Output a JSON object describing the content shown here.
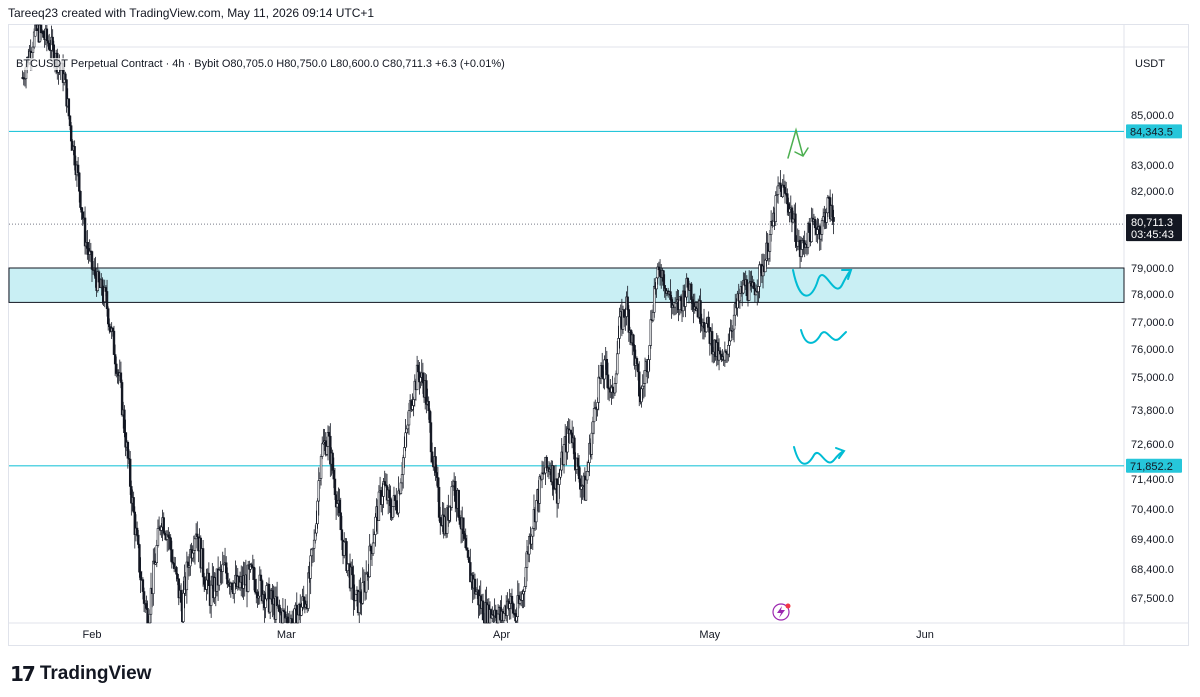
{
  "header": {
    "credit": "Tareeq23 created with TradingView.com, May 11, 2026 09:14 UTC+1"
  },
  "symbol": {
    "info": "BTCUSDT Perpetual Contract · 4h · Bybit  O80,705.0  H80,750.0  L80,600.0  C80,711.3  +6.3 (+0.01%)"
  },
  "currency": "USDT",
  "footer": {
    "brand": "TradingView",
    "mark": "17"
  },
  "colors": {
    "candle": "#131722",
    "level_line": "#26c6da",
    "zone_fill": "#c9eff4",
    "annotation_cyan": "#00bcd4",
    "annotation_green": "#4caf50",
    "badge_bg": "#26c6da",
    "price_badge_bg": "#131722"
  },
  "chart_data": {
    "type": "candlestick",
    "title": "",
    "y_axis": {
      "ticks": [
        {
          "value": 85000,
          "label": "85,000.0"
        },
        {
          "value": 83000,
          "label": "83,000.0"
        },
        {
          "value": 82000,
          "label": "82,000.0"
        },
        {
          "value": 79000,
          "label": "79,000.0"
        },
        {
          "value": 78000,
          "label": "78,000.0"
        },
        {
          "value": 77000,
          "label": "77,000.0"
        },
        {
          "value": 76000,
          "label": "76,000.0"
        },
        {
          "value": 75000,
          "label": "75,000.0"
        },
        {
          "value": 73800,
          "label": "73,800.0"
        },
        {
          "value": 72600,
          "label": "72,600.0"
        },
        {
          "value": 71400,
          "label": "71,400.0"
        },
        {
          "value": 70400,
          "label": "70,400.0"
        },
        {
          "value": 69400,
          "label": "69,400.0"
        },
        {
          "value": 68400,
          "label": "68,400.0"
        },
        {
          "value": 67500,
          "label": "67,500.0"
        }
      ]
    },
    "x_axis": {
      "ticks": [
        {
          "day": 31,
          "label": "Feb"
        },
        {
          "day": 59,
          "label": "Mar"
        },
        {
          "day": 90,
          "label": "Apr"
        },
        {
          "day": 120,
          "label": "May"
        },
        {
          "day": 151,
          "label": "Jun"
        }
      ]
    },
    "levels": [
      {
        "price": 84343.5,
        "label": "84,343.5"
      },
      {
        "price": 71852.2,
        "label": "71,852.2"
      }
    ],
    "zone": {
      "top": 79000,
      "bottom": 77700
    },
    "current_price": {
      "price": 80711.3,
      "label": "80,711.3",
      "countdown": "03:45:43"
    },
    "price_path": [
      {
        "day": 21,
        "price": 86500
      },
      {
        "day": 23,
        "price": 88500
      },
      {
        "day": 25,
        "price": 87800
      },
      {
        "day": 27,
        "price": 86500
      },
      {
        "day": 28,
        "price": 84200
      },
      {
        "day": 29,
        "price": 82500
      },
      {
        "day": 30,
        "price": 80200
      },
      {
        "day": 31,
        "price": 79000
      },
      {
        "day": 32,
        "price": 78300
      },
      {
        "day": 33,
        "price": 77800
      },
      {
        "day": 34,
        "price": 76300
      },
      {
        "day": 35,
        "price": 74800
      },
      {
        "day": 36,
        "price": 72400
      },
      {
        "day": 37,
        "price": 70200
      },
      {
        "day": 38,
        "price": 68200
      },
      {
        "day": 39,
        "price": 66800
      },
      {
        "day": 40,
        "price": 68500
      },
      {
        "day": 41,
        "price": 70200
      },
      {
        "day": 42,
        "price": 69500
      },
      {
        "day": 43,
        "price": 68200
      },
      {
        "day": 44,
        "price": 67200
      },
      {
        "day": 45,
        "price": 68800
      },
      {
        "day": 46,
        "price": 69800
      },
      {
        "day": 47,
        "price": 68400
      },
      {
        "day": 48,
        "price": 67600
      },
      {
        "day": 50,
        "price": 68400
      },
      {
        "day": 52,
        "price": 67800
      },
      {
        "day": 54,
        "price": 68200
      },
      {
        "day": 56,
        "price": 67600
      },
      {
        "day": 58,
        "price": 67000
      },
      {
        "day": 60,
        "price": 66700
      },
      {
        "day": 62,
        "price": 67600
      },
      {
        "day": 63,
        "price": 69200
      },
      {
        "day": 64,
        "price": 72400
      },
      {
        "day": 65,
        "price": 72800
      },
      {
        "day": 66,
        "price": 71200
      },
      {
        "day": 67,
        "price": 69400
      },
      {
        "day": 68,
        "price": 68400
      },
      {
        "day": 69,
        "price": 67300
      },
      {
        "day": 70,
        "price": 67600
      },
      {
        "day": 71,
        "price": 68800
      },
      {
        "day": 72,
        "price": 70200
      },
      {
        "day": 73,
        "price": 71200
      },
      {
        "day": 74,
        "price": 70400
      },
      {
        "day": 75,
        "price": 70700
      },
      {
        "day": 76,
        "price": 72400
      },
      {
        "day": 77,
        "price": 74200
      },
      {
        "day": 78,
        "price": 75200
      },
      {
        "day": 79,
        "price": 74600
      },
      {
        "day": 80,
        "price": 72400
      },
      {
        "day": 81,
        "price": 70400
      },
      {
        "day": 82,
        "price": 69800
      },
      {
        "day": 83,
        "price": 71400
      },
      {
        "day": 84,
        "price": 70200
      },
      {
        "day": 85,
        "price": 68600
      },
      {
        "day": 86,
        "price": 67900
      },
      {
        "day": 87,
        "price": 67300
      },
      {
        "day": 88,
        "price": 66900
      },
      {
        "day": 89,
        "price": 67200
      },
      {
        "day": 90,
        "price": 66800
      },
      {
        "day": 91,
        "price": 67500
      },
      {
        "day": 92,
        "price": 66900
      },
      {
        "day": 93,
        "price": 67600
      },
      {
        "day": 94,
        "price": 69400
      },
      {
        "day": 95,
        "price": 70600
      },
      {
        "day": 96,
        "price": 71600
      },
      {
        "day": 97,
        "price": 71900
      },
      {
        "day": 98,
        "price": 71000
      },
      {
        "day": 99,
        "price": 72400
      },
      {
        "day": 100,
        "price": 73200
      },
      {
        "day": 101,
        "price": 71600
      },
      {
        "day": 102,
        "price": 71000
      },
      {
        "day": 103,
        "price": 73000
      },
      {
        "day": 104,
        "price": 74800
      },
      {
        "day": 105,
        "price": 75300
      },
      {
        "day": 106,
        "price": 74200
      },
      {
        "day": 107,
        "price": 76800
      },
      {
        "day": 108,
        "price": 77600
      },
      {
        "day": 109,
        "price": 76000
      },
      {
        "day": 110,
        "price": 74200
      },
      {
        "day": 111,
        "price": 75600
      },
      {
        "day": 112,
        "price": 78200
      },
      {
        "day": 113,
        "price": 79000
      },
      {
        "day": 114,
        "price": 78000
      },
      {
        "day": 115,
        "price": 77400
      },
      {
        "day": 116,
        "price": 77800
      },
      {
        "day": 117,
        "price": 78400
      },
      {
        "day": 118,
        "price": 77600
      },
      {
        "day": 119,
        "price": 77200
      },
      {
        "day": 120,
        "price": 76500
      },
      {
        "day": 121,
        "price": 75800
      },
      {
        "day": 122,
        "price": 75400
      },
      {
        "day": 123,
        "price": 76800
      },
      {
        "day": 124,
        "price": 77600
      },
      {
        "day": 125,
        "price": 78400
      },
      {
        "day": 126,
        "price": 78000
      },
      {
        "day": 127,
        "price": 78600
      },
      {
        "day": 128,
        "price": 79400
      },
      {
        "day": 129,
        "price": 80600
      },
      {
        "day": 130,
        "price": 82200
      },
      {
        "day": 131,
        "price": 81800
      },
      {
        "day": 132,
        "price": 80900
      },
      {
        "day": 133,
        "price": 79600
      },
      {
        "day": 134,
        "price": 80200
      },
      {
        "day": 135,
        "price": 80700
      },
      {
        "day": 136,
        "price": 80500
      },
      {
        "day": 137,
        "price": 81500
      },
      {
        "day": 138,
        "price": 80711
      }
    ]
  }
}
